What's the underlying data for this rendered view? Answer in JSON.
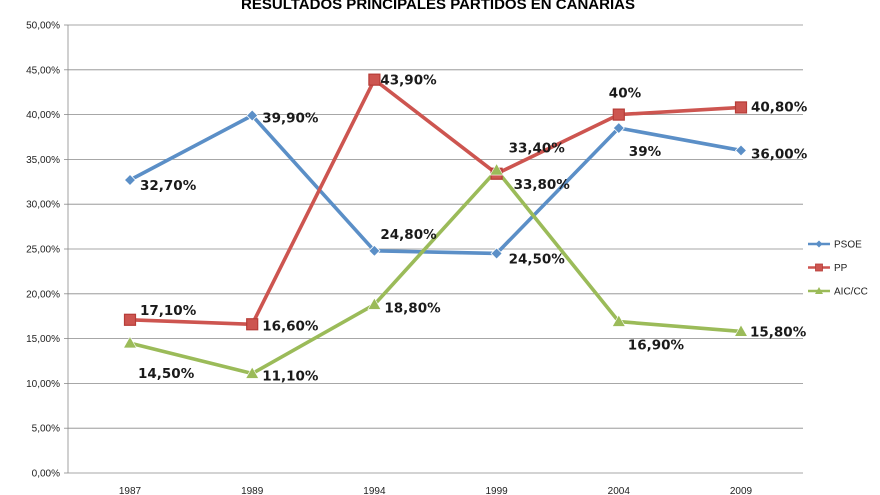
{
  "chart_data": {
    "type": "line",
    "title": "RESULTADOS PRINCIPALES PARTIDOS EN CANARIAS",
    "categories": [
      "1987",
      "1989",
      "1994",
      "1999",
      "2004",
      "2009"
    ],
    "ylim": [
      0,
      50
    ],
    "yticks": [
      "0,00%",
      "5,00%",
      "10,00%",
      "15,00%",
      "20,00%",
      "25,00%",
      "30,00%",
      "35,00%",
      "40,00%",
      "45,00%",
      "50,00%"
    ],
    "legend_position": "right",
    "grid": true,
    "series": [
      {
        "name": "PSOE",
        "color": "#5b8fc7",
        "marker": "diamond",
        "values": [
          32.7,
          39.9,
          24.8,
          24.5,
          38.5,
          36.0
        ],
        "labels": [
          "32,70%",
          "39,90%",
          "24,80%",
          "24,50%",
          "39%",
          "36,00%"
        ]
      },
      {
        "name": "PP",
        "color": "#cd5550",
        "marker": "square",
        "values": [
          17.1,
          16.6,
          43.9,
          33.4,
          40.0,
          40.8
        ],
        "labels": [
          "17,10%",
          "16,60%",
          "43,90%",
          "33,40%",
          "40%",
          "40,80%"
        ]
      },
      {
        "name": "AIC/CC",
        "color": "#9bbb59",
        "marker": "triangle",
        "values": [
          14.5,
          11.1,
          18.8,
          33.8,
          16.9,
          15.8
        ],
        "labels": [
          "14,50%",
          "11,10%",
          "18,80%",
          "33,80%",
          "16,90%",
          "15,80%"
        ]
      }
    ]
  }
}
